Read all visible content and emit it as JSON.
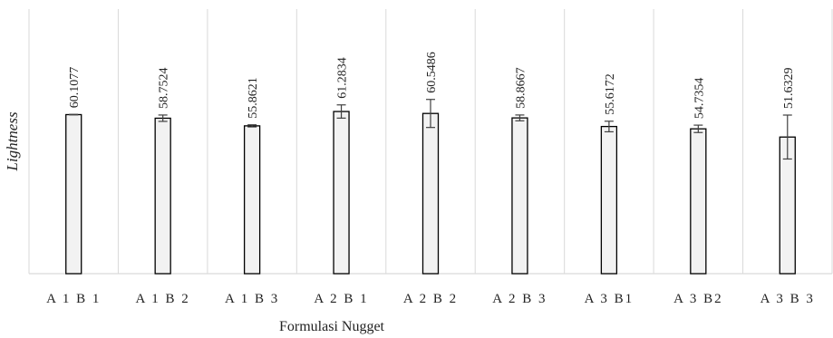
{
  "chart_data": {
    "type": "bar",
    "title": "",
    "xlabel": "Formulasi Nugget",
    "ylabel": "Lightness",
    "categories": [
      "A1B1",
      "A1B2",
      "A1B3",
      "A2B1",
      "A2B2",
      "A2B3",
      "A3B1",
      "A3B2",
      "A3B3"
    ],
    "category_labels": [
      "A 1 B 1",
      "A 1 B 2",
      "A 1 B 3",
      "A 2 B 1",
      "A 2 B 2",
      "A 2 B 3",
      "A 3 B1",
      "A 3 B2",
      "A 3 B 3"
    ],
    "values": [
      60.1077,
      58.7524,
      55.8621,
      61.2834,
      60.5486,
      58.8667,
      55.6172,
      54.7354,
      51.6329
    ],
    "data_labels": [
      "60.1077",
      "58.7524",
      "55.8621",
      "61.2834",
      "60.5486",
      "58.8667",
      "55.6172",
      "54.7354",
      "51.6329"
    ],
    "error": [
      0.1,
      1.2,
      0.4,
      2.5,
      5.3,
      1.1,
      2.0,
      1.4,
      8.3
    ],
    "ylim": [
      0,
      100
    ],
    "grid": "vertical category separators",
    "colors": {
      "bar_fill": "#f2f2f2",
      "bar_stroke": "#000000",
      "grid": "#d9d9d9",
      "error_bar": "#404040"
    }
  }
}
